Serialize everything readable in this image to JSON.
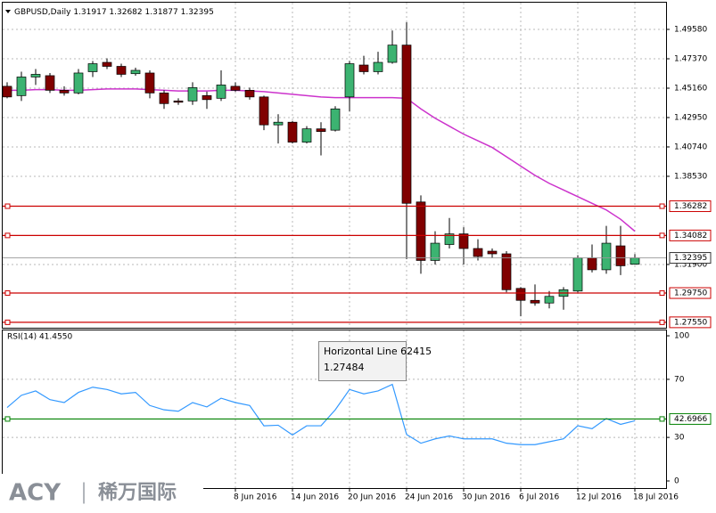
{
  "chart_data": {
    "type": "candlestick",
    "symbol": "GBPUSD,Daily",
    "categories": [
      null,
      null,
      null,
      null,
      null,
      null,
      null,
      null,
      null,
      null,
      null,
      null,
      null,
      null,
      null,
      null,
      "8 Jun 2016",
      null,
      null,
      null,
      "14 Jun 2016",
      null,
      null,
      null,
      "20 Jun 2016",
      null,
      null,
      null,
      "24 Jun 2016",
      null,
      null,
      null,
      "30 Jun 2016",
      null,
      null,
      null,
      "6 Jul 2016",
      null,
      null,
      null,
      "12 Jul 2016",
      null,
      null,
      null,
      "18 Jul 2016"
    ],
    "open": [
      1.453,
      1.446,
      1.46,
      1.461,
      1.45,
      1.448,
      1.464,
      1.471,
      1.468,
      1.4625,
      1.463,
      1.448,
      1.442,
      1.442,
      1.446,
      1.444,
      1.453,
      1.45,
      1.445,
      1.424,
      1.426,
      1.411,
      1.421,
      1.42,
      1.445,
      1.469,
      1.464,
      1.471,
      1.484,
      1.366,
      1.322,
      1.334,
      1.342,
      1.331,
      1.329,
      1.327,
      1.301,
      1.292,
      1.29,
      1.295,
      1.299,
      1.324,
      1.315,
      1.333,
      1.31917
    ],
    "high": [
      1.456,
      1.464,
      1.466,
      1.463,
      1.453,
      1.466,
      1.472,
      1.474,
      1.47,
      1.467,
      1.465,
      1.45,
      1.444,
      1.456,
      1.449,
      1.465,
      1.456,
      1.452,
      1.446,
      1.432,
      1.427,
      1.423,
      1.426,
      1.438,
      1.472,
      1.476,
      1.479,
      1.495,
      1.5012,
      1.371,
      1.344,
      1.354,
      1.347,
      1.338,
      1.331,
      1.329,
      1.302,
      1.304,
      1.299,
      1.302,
      1.326,
      1.334,
      1.348,
      1.348,
      1.32682
    ],
    "low": [
      1.444,
      1.442,
      1.454,
      1.448,
      1.446,
      1.447,
      1.46,
      1.466,
      1.46,
      1.461,
      1.444,
      1.436,
      1.439,
      1.439,
      1.436,
      1.442,
      1.449,
      1.443,
      1.42,
      1.41,
      1.41,
      1.41,
      1.401,
      1.419,
      1.434,
      1.462,
      1.462,
      1.47,
      1.323,
      1.312,
      1.319,
      1.331,
      1.319,
      1.322,
      1.324,
      1.298,
      1.28,
      1.288,
      1.286,
      1.285,
      1.298,
      1.313,
      1.312,
      1.311,
      1.31877
    ],
    "close": [
      1.445,
      1.46,
      1.462,
      1.45,
      1.448,
      1.463,
      1.47,
      1.468,
      1.462,
      1.465,
      1.448,
      1.44,
      1.441,
      1.452,
      1.443,
      1.454,
      1.45,
      1.445,
      1.424,
      1.426,
      1.411,
      1.421,
      1.419,
      1.436,
      1.47,
      1.464,
      1.471,
      1.484,
      1.365,
      1.322,
      1.335,
      1.342,
      1.331,
      1.325,
      1.327,
      1.3,
      1.292,
      1.29,
      1.295,
      1.3,
      1.324,
      1.315,
      1.335,
      1.318,
      1.32395
    ],
    "close_label": "1.32395",
    "up_color": "#3cb371",
    "down_color": "#800000",
    "ma": {
      "color": "#cc33cc",
      "values": [
        1.45,
        1.45,
        1.4505,
        1.4505,
        1.45,
        1.45,
        1.4505,
        1.451,
        1.451,
        1.451,
        1.4505,
        1.45,
        1.4495,
        1.4495,
        1.4495,
        1.45,
        1.45,
        1.4495,
        1.449,
        1.448,
        1.447,
        1.446,
        1.445,
        1.4445,
        1.4445,
        1.4445,
        1.4445,
        1.4445,
        1.444,
        1.436,
        1.429,
        1.423,
        1.417,
        1.412,
        1.407,
        1.4,
        1.393,
        1.386,
        1.38,
        1.375,
        1.37,
        1.365,
        1.36,
        1.353,
        1.344
      ]
    },
    "ylim": [
      1.2714,
      1.5159
    ],
    "yticks": [
      {
        "value": 1.4958,
        "label": "1.49580"
      },
      {
        "value": 1.4737,
        "label": "1.47370"
      },
      {
        "value": 1.4516,
        "label": "1.45160"
      },
      {
        "value": 1.4295,
        "label": "1.42950"
      },
      {
        "value": 1.4074,
        "label": "1.40740"
      },
      {
        "value": 1.3853,
        "label": "1.38530"
      },
      {
        "value": 1.319,
        "label": "1.31900"
      }
    ],
    "hlines": {
      "color": "#cc0000",
      "values": [
        1.36282,
        1.34082,
        1.2975,
        1.2755
      ],
      "value_labels": [
        "1.36282",
        "1.34082",
        "1.29750",
        "1.27550"
      ]
    },
    "rsi": {
      "header": "RSI(14) 41.4550",
      "color": "#3399ff",
      "values": [
        50.6,
        59,
        62,
        56,
        54,
        61,
        64.6,
        63,
        60,
        61,
        52,
        49,
        48,
        54,
        51,
        57,
        54,
        52,
        38,
        38.4,
        31.7,
        38,
        38,
        49,
        63,
        60,
        62,
        66.5,
        32,
        26,
        29,
        31,
        29,
        29,
        29,
        26,
        25,
        25,
        27,
        29,
        38,
        36,
        43,
        39,
        41.455
      ],
      "ylim": [
        -4.9,
        103.7
      ],
      "yticks": [
        100,
        70,
        30,
        0
      ],
      "hline": 42.6966,
      "hline_color": "#008000"
    },
    "tooltip": {
      "title": "Horizontal Line 62415",
      "value": "1.27484"
    },
    "watermark": {
      "brand": "ACY",
      "separator": "|",
      "cn": "稀万国际"
    },
    "grid": true
  }
}
